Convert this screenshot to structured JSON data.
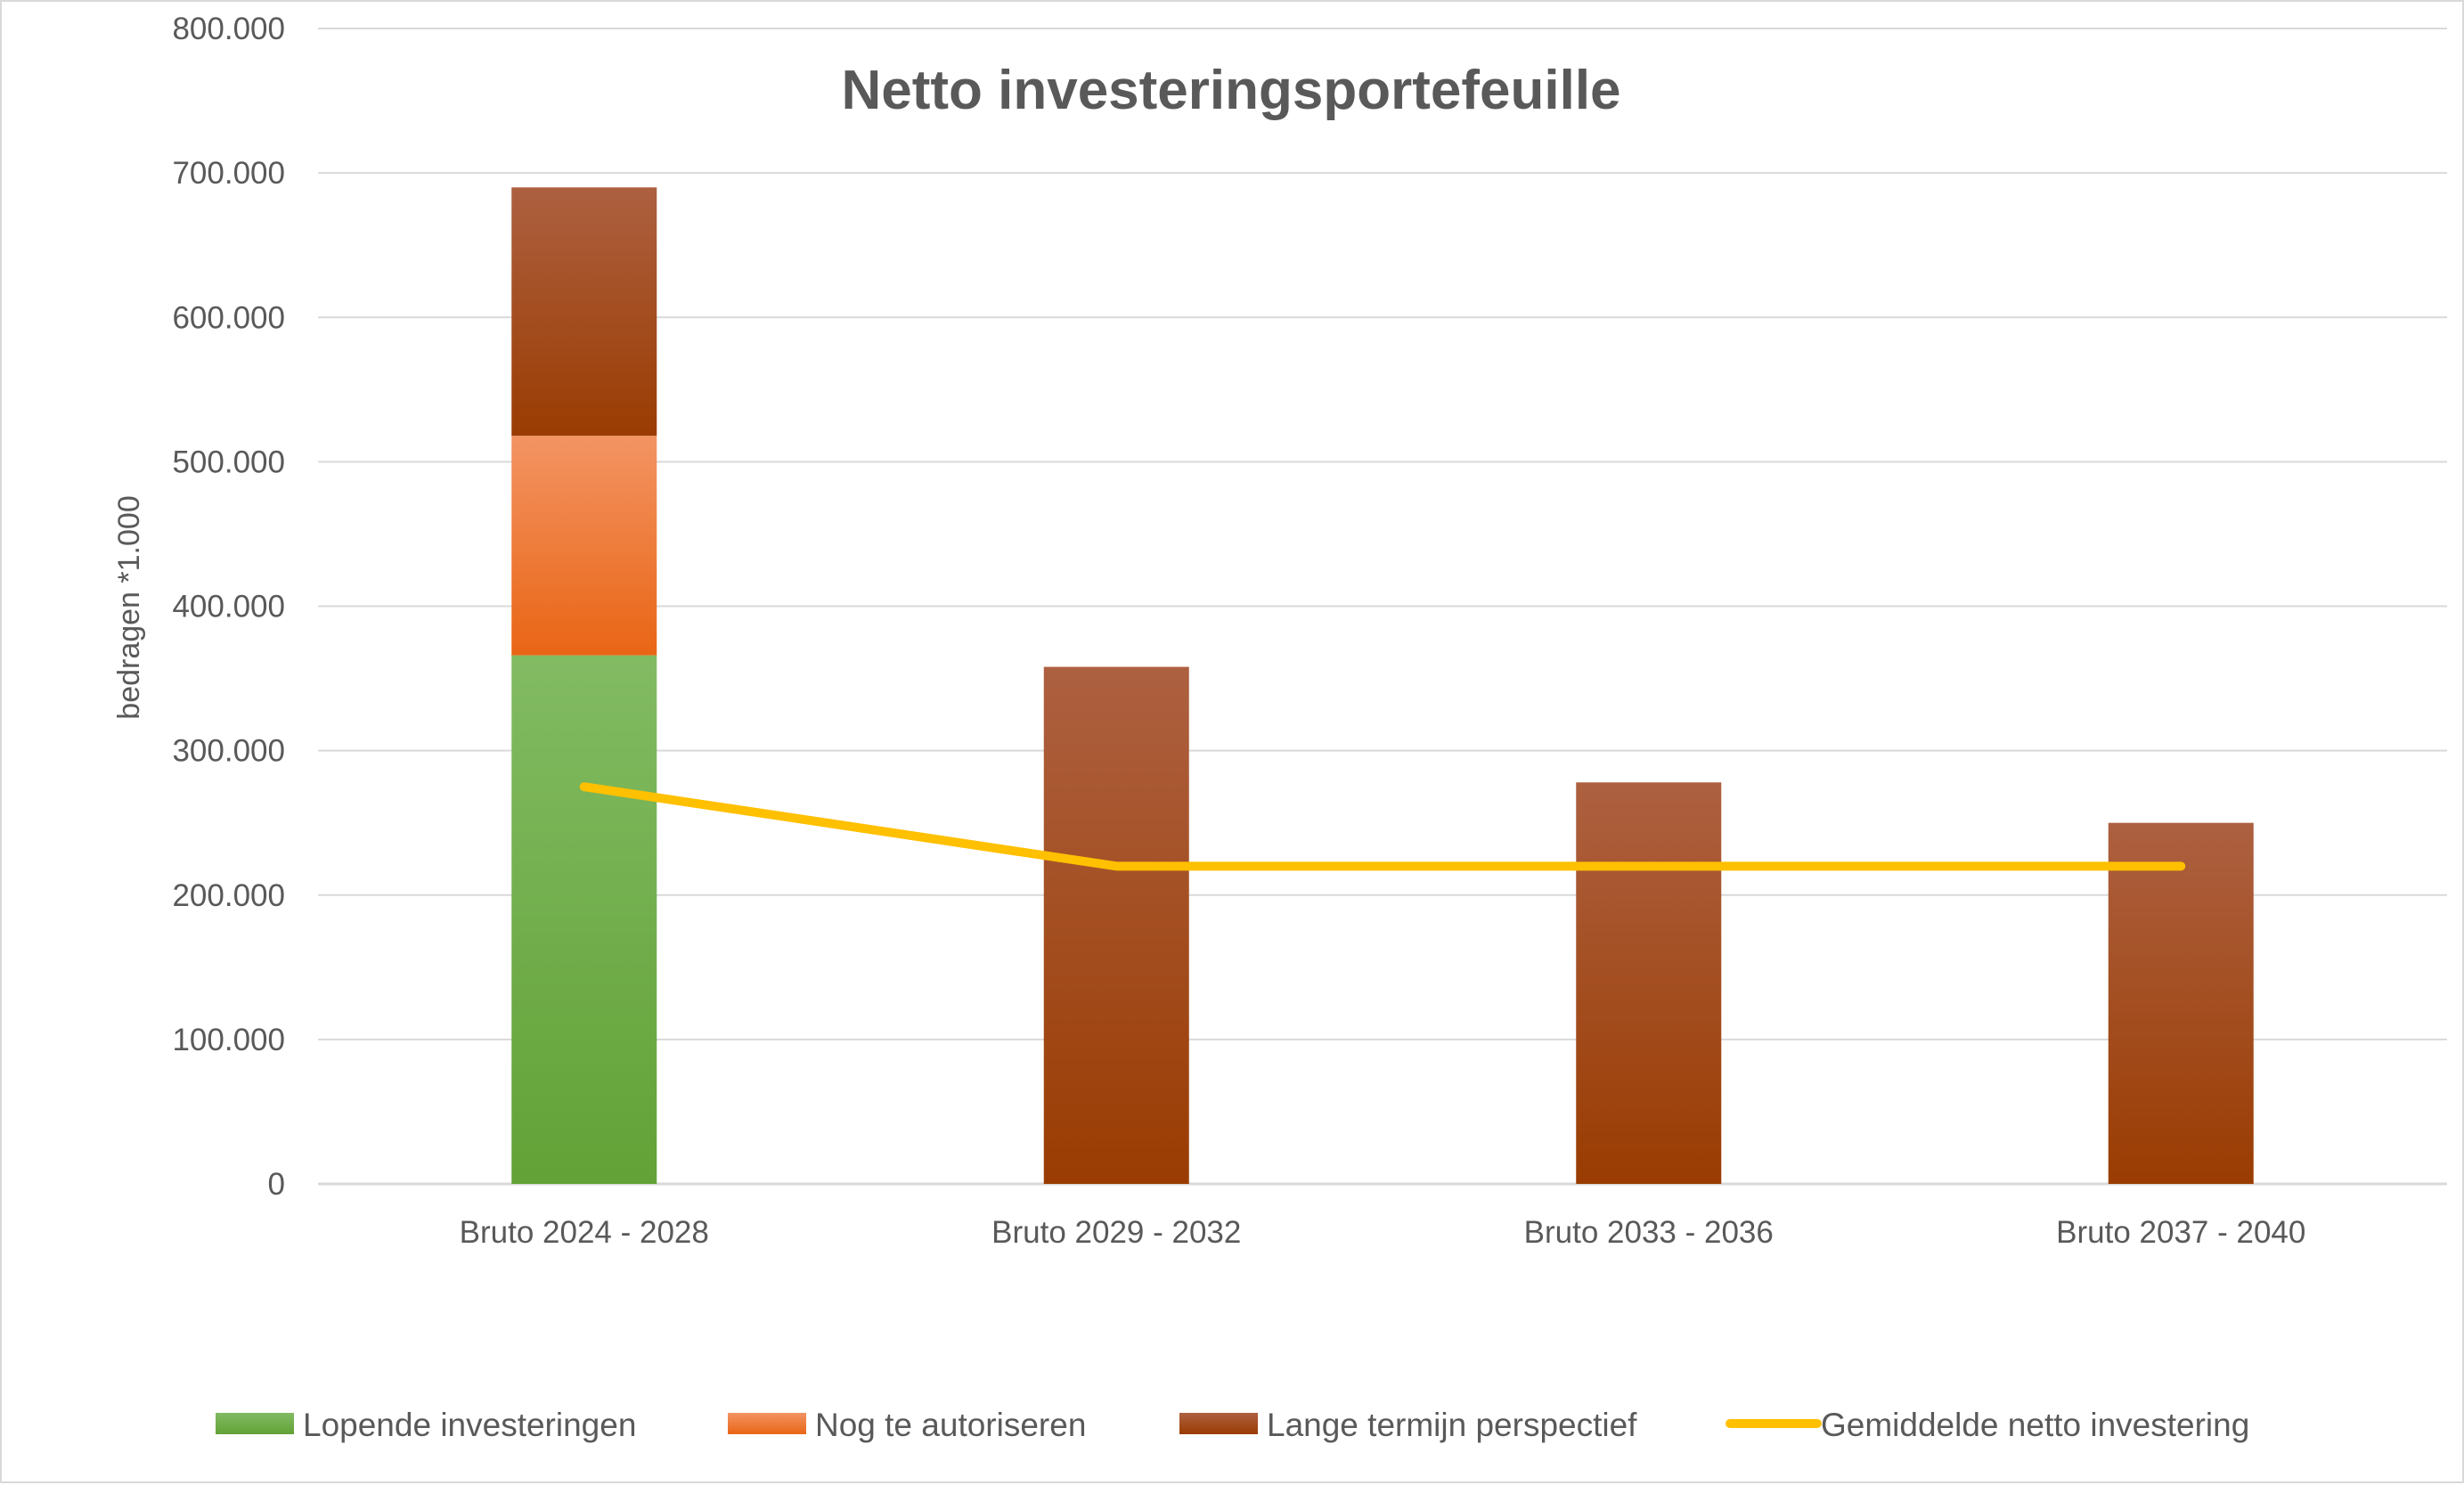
{
  "chart_data": {
    "type": "bar",
    "stacked": true,
    "title": "Netto investeringsportefeuille",
    "xlabel": "",
    "ylabel": "bedragen *1.000",
    "ylim": [
      0,
      800000
    ],
    "yticks": [
      0,
      100000,
      200000,
      300000,
      400000,
      500000,
      600000,
      700000,
      800000
    ],
    "ytick_labels": [
      "0",
      "100.000",
      "200.000",
      "300.000",
      "400.000",
      "500.000",
      "600.000",
      "700.000",
      "800.000"
    ],
    "grid": true,
    "legend_position": "bottom",
    "categories": [
      "Bruto 2024 - 2028",
      "Bruto 2029 - 2032",
      "Bruto 2033 - 2036",
      "Bruto 2037 - 2040"
    ],
    "series": [
      {
        "name": "Lopende investeringen",
        "type": "bar",
        "color": "#70ad47",
        "values": [
          366000,
          0,
          0,
          0
        ]
      },
      {
        "name": "Nog te autoriseren",
        "type": "bar",
        "color": "#ed7d31",
        "values": [
          152000,
          0,
          0,
          0
        ]
      },
      {
        "name": "Lange termijn perspectief",
        "type": "bar",
        "color": "#9e480e",
        "values": [
          172000,
          358000,
          278000,
          250000
        ]
      },
      {
        "name": "Gemiddelde netto investering",
        "type": "line",
        "color": "#ffc000",
        "values": [
          275000,
          220000,
          220000,
          220000
        ]
      }
    ]
  }
}
